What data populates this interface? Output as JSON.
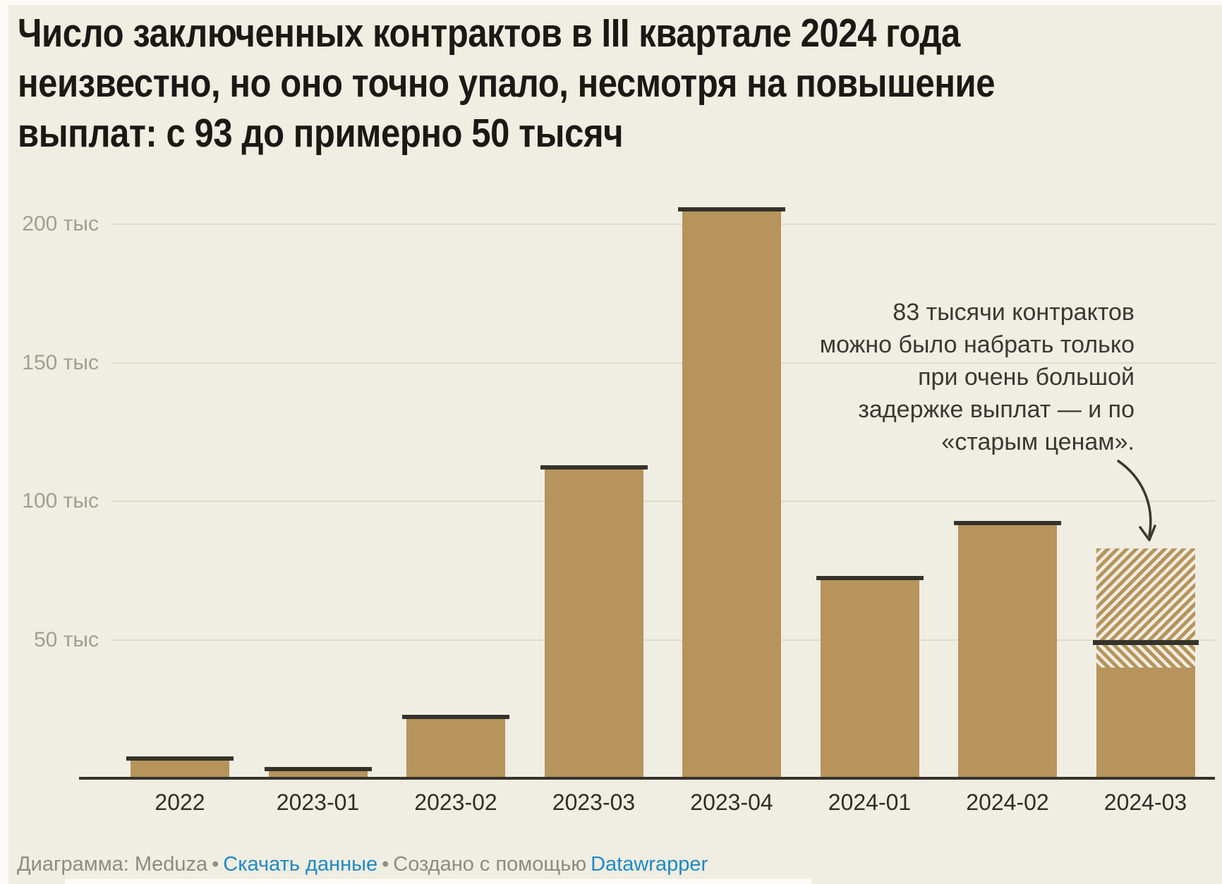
{
  "title": "Число заключенных контрактов в III квартале 2024 года неизвестно, но оно точно упало, несмотря на повышение выплат: с 93 до примерно 50 тысяч",
  "title_lines": [
    "Число заключенных контрактов в III квартале 2024 года",
    "неизвестно, но оно точно упало, несмотря на повышение",
    "выплат: с 93 до примерно 50 тысяч"
  ],
  "colors": {
    "background": "#f0ede2",
    "bar": "#b6945c",
    "bar_cap": "#34322b",
    "gridline": "#dfdbcd",
    "axis_line": "#34322b",
    "y_label": "#a29e90",
    "x_label": "#2f2d28",
    "annotation_text": "#393834",
    "footer_text": "#8e8b80",
    "link": "#1e8ac4",
    "title_text": "#1a1915"
  },
  "y_axis": {
    "unit": "тыс",
    "ticks": [
      {
        "value": 50,
        "label": "50 тыс"
      },
      {
        "value": 100,
        "label": "100 тыс"
      },
      {
        "value": 150,
        "label": "150 тыс"
      },
      {
        "value": 200,
        "label": "200 тыс"
      }
    ]
  },
  "annotation": {
    "text": "83 тысячи контрактов можно было набрать только при очень большой задержке выплат — и по «старым ценам».",
    "lines": [
      "83 тысячи контрактов",
      "можно было набрать только",
      "при очень большой",
      "задержке выплат — и по",
      "«старым ценам»."
    ]
  },
  "footer": {
    "prefix": "Диаграмма: Meduza",
    "separator": "•",
    "download_link": "Скачать данные",
    "middle": "Создано с помощью",
    "tool_link": "Datawrapper"
  },
  "chart_data": {
    "type": "bar",
    "title": "Число заключенных контрактов в III квартале 2024 года неизвестно, но оно точно упало, несмотря на повышение выплат: с 93 до примерно 50 тысяч",
    "xlabel": "",
    "ylabel": "тыс",
    "ylim": [
      0,
      215
    ],
    "grid": true,
    "gridlines": [
      50,
      100,
      150,
      200
    ],
    "categories": [
      "2022",
      "2023-01",
      "2023-02",
      "2023-03",
      "2023-04",
      "2024-01",
      "2024-02",
      "2024-03"
    ],
    "values": [
      8,
      4,
      23,
      113,
      206,
      73,
      93,
      50
    ],
    "bars": [
      {
        "label": "2022",
        "value": 8
      },
      {
        "label": "2023-01",
        "value": 4
      },
      {
        "label": "2023-02",
        "value": 23
      },
      {
        "label": "2023-03",
        "value": 113
      },
      {
        "label": "2023-04",
        "value": 206
      },
      {
        "label": "2024-01",
        "value": 73
      },
      {
        "label": "2024-02",
        "value": 93
      },
      {
        "label": "2024-03",
        "type": "estimate",
        "solid_value": 40,
        "marker_value": 49,
        "hatch_top_value": 83
      }
    ],
    "annotation_target": "2024-03"
  }
}
